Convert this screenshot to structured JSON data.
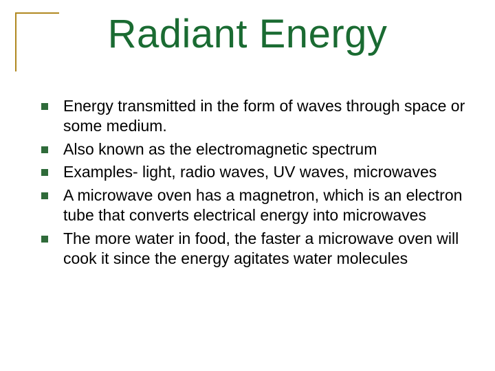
{
  "title": "Radiant Energy",
  "title_color": "#1a6b32",
  "title_fontsize": 58,
  "frame_color": "#b08820",
  "bullet_marker_color": "#2f6b3a",
  "bullet_marker_size": 10,
  "body_fontsize": 23,
  "body_color": "#000000",
  "background_color": "#ffffff",
  "bullets": [
    "Energy transmitted in the form of waves through space or some medium.",
    "Also known as the electromagnetic spectrum",
    "Examples- light, radio waves, UV waves, microwaves",
    "A microwave oven has a magnetron, which is an electron tube that converts electrical energy into microwaves",
    "The more water in food, the faster a microwave oven will cook it since the energy agitates water molecules"
  ]
}
